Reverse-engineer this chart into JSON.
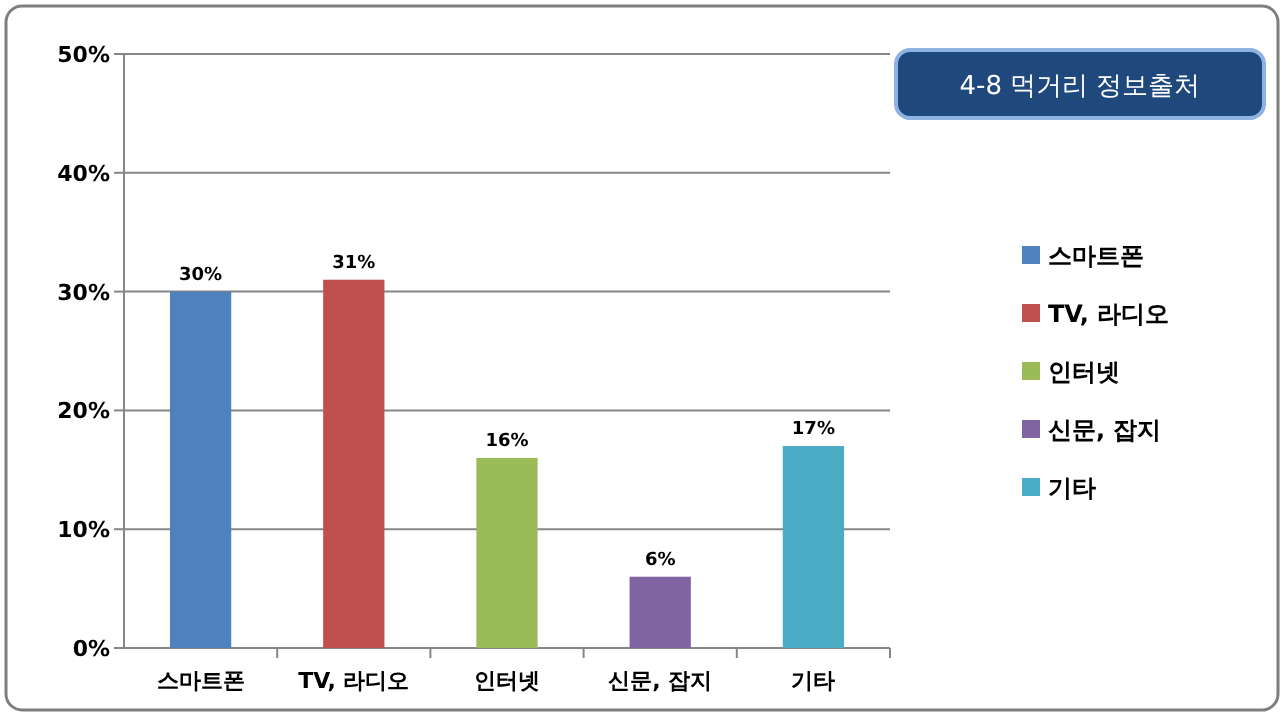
{
  "chart_data": {
    "type": "bar",
    "title": "4-8 먹거리 정보출처",
    "categories": [
      "스마트폰",
      "TV, 라디오",
      "인터넷",
      "신문, 잡지",
      "기타"
    ],
    "series": [
      {
        "name": "스마트폰",
        "color": "#4f81bd",
        "values": [
          30,
          null,
          null,
          null,
          null
        ],
        "value_labels": [
          "30%",
          null,
          null,
          null,
          null
        ]
      },
      {
        "name": "TV, 라디오",
        "color": "#c0504d",
        "values": [
          null,
          31,
          null,
          null,
          null
        ],
        "value_labels": [
          null,
          "31%",
          null,
          null,
          null
        ]
      },
      {
        "name": "인터넷",
        "color": "#9bbb59",
        "values": [
          null,
          null,
          16,
          null,
          null
        ],
        "value_labels": [
          null,
          null,
          "16%",
          null,
          null
        ]
      },
      {
        "name": "신문, 잡지",
        "color": "#8064a2",
        "values": [
          null,
          null,
          null,
          6,
          null
        ],
        "value_labels": [
          null,
          null,
          null,
          "6%",
          null
        ]
      },
      {
        "name": "기타",
        "color": "#4bacc6",
        "values": [
          null,
          null,
          null,
          null,
          17
        ],
        "value_labels": [
          null,
          null,
          null,
          null,
          "17%"
        ]
      }
    ],
    "ylim": [
      0,
      50
    ],
    "yticks": [
      {
        "value": 0,
        "label": "0%"
      },
      {
        "value": 10,
        "label": "10%"
      },
      {
        "value": 20,
        "label": "20%"
      },
      {
        "value": 30,
        "label": "30%"
      },
      {
        "value": 40,
        "label": "40%"
      },
      {
        "value": 50,
        "label": "50%"
      }
    ],
    "grid": "y",
    "legend": "right"
  }
}
